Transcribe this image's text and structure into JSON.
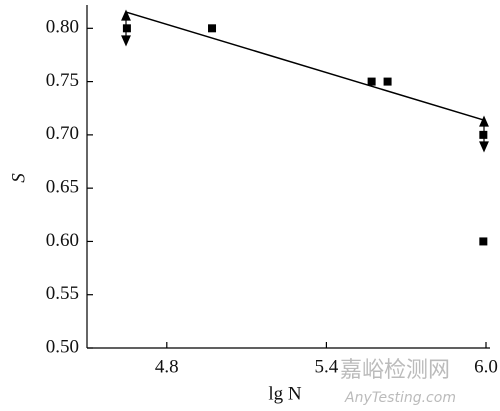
{
  "chart_data": {
    "type": "scatter",
    "x_label": "lg N",
    "y_label": "S",
    "xlim": [
      4.5,
      6.0
    ],
    "ylim": [
      0.5,
      0.82
    ],
    "xticks": [
      4.8,
      5.4,
      {
        "value": 6,
        "label": "6.0"
      }
    ],
    "yticks": [
      {
        "value": 0.5,
        "label": "0.50"
      },
      {
        "value": 0.55,
        "label": "0.55"
      },
      {
        "value": 0.6,
        "label": "0.60"
      },
      {
        "value": 0.65,
        "label": "0.65"
      },
      {
        "value": 0.7,
        "label": "0.70"
      },
      {
        "value": 0.75,
        "label": "0.75"
      },
      {
        "value": 0.8,
        "label": "0.80"
      }
    ],
    "series": [
      {
        "type": "scatter",
        "color": "#000000",
        "x": [
          4.65,
          4.97,
          5.57,
          5.63,
          5.99,
          5.99
        ],
        "values": [
          0.8,
          0.8,
          0.75,
          0.75,
          0.7,
          0.6
        ]
      },
      {
        "type": "line",
        "color": "#000000",
        "x": [
          4.65,
          5.99
        ],
        "values": [
          0.815,
          0.714
        ]
      }
    ],
    "watermark": [
      "嘉峪检测网",
      "AnyTesting.com"
    ]
  }
}
